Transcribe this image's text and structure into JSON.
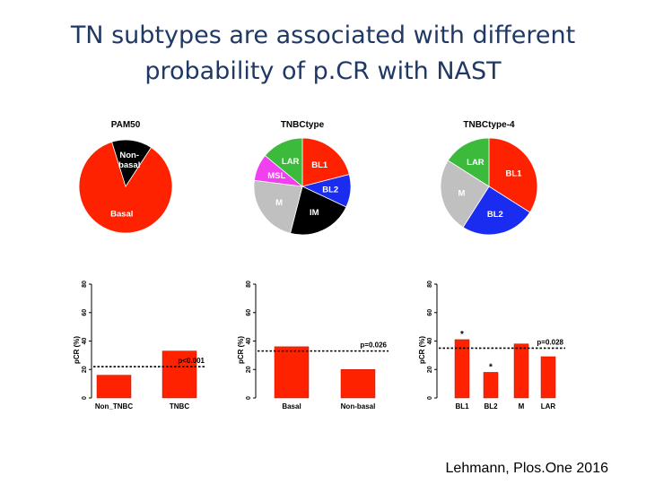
{
  "slide": {
    "title_line1": "TN subtypes are associated with different",
    "title_line2": "probability of p.CR with NAST",
    "citation": "Lehmann, Plos.One 2016"
  },
  "colors": {
    "title": "#1f3864",
    "red": "#ff2200",
    "black": "#000000",
    "blue": "#1a2cf0",
    "gray": "#c0c0c0",
    "green": "#3cba3c",
    "magenta": "#f040f0"
  },
  "chart_data": [
    {
      "type": "pie",
      "title": "PAM50",
      "slices": [
        {
          "label": "Basal",
          "value": 86,
          "color": "#ff2200",
          "label_color": "#ffffff"
        },
        {
          "label": "Non-\nbasal",
          "value": 14,
          "color": "#000000",
          "label_color": "#ffffff"
        }
      ]
    },
    {
      "type": "pie",
      "title": "TNBCtype",
      "slices": [
        {
          "label": "BL1",
          "value": 21,
          "color": "#ff2200",
          "label_color": "#ffffff"
        },
        {
          "label": "BL2",
          "value": 11,
          "color": "#1a2cf0",
          "label_color": "#ffffff"
        },
        {
          "label": "IM",
          "value": 22,
          "color": "#000000",
          "label_color": "#ffffff"
        },
        {
          "label": "M",
          "value": 23,
          "color": "#c0c0c0",
          "label_color": "#ffffff"
        },
        {
          "label": "MSL",
          "value": 9,
          "color": "#f040f0",
          "label_color": "#ffffff"
        },
        {
          "label": "LAR",
          "value": 14,
          "color": "#3cba3c",
          "label_color": "#ffffff"
        }
      ]
    },
    {
      "type": "pie",
      "title": "TNBCtype-4",
      "slices": [
        {
          "label": "BL1",
          "value": 34,
          "color": "#ff2200",
          "label_color": "#ffffff"
        },
        {
          "label": "BL2",
          "value": 25,
          "color": "#1a2cf0",
          "label_color": "#ffffff"
        },
        {
          "label": "M",
          "value": 25,
          "color": "#c0c0c0",
          "label_color": "#ffffff"
        },
        {
          "label": "LAR",
          "value": 16,
          "color": "#3cba3c",
          "label_color": "#ffffff"
        }
      ]
    },
    {
      "type": "bar",
      "categories": [
        "Non_TNBC",
        "TNBC"
      ],
      "values": [
        16,
        33
      ],
      "ylabel": "pCR (%)",
      "yticks": [
        0,
        20,
        40,
        60,
        80
      ],
      "ylim": [
        0,
        80
      ],
      "reference_line": 22,
      "annotation": "p<0.001",
      "stars": []
    },
    {
      "type": "bar",
      "categories": [
        "Basal",
        "Non-basal"
      ],
      "values": [
        36,
        20
      ],
      "ylabel": "pCR (%)",
      "yticks": [
        0,
        20,
        40,
        60,
        80
      ],
      "ylim": [
        0,
        80
      ],
      "reference_line": 33,
      "annotation": "p=0.026",
      "stars": []
    },
    {
      "type": "bar",
      "categories": [
        "BL1",
        "BL2",
        "M",
        "LAR"
      ],
      "values": [
        41,
        18,
        38,
        29
      ],
      "ylabel": "pCR (%)",
      "yticks": [
        0,
        20,
        40,
        60,
        80
      ],
      "ylim": [
        0,
        80
      ],
      "reference_line": 35,
      "annotation": "p=0.028",
      "stars": [
        {
          "category": "BL1",
          "label": "*"
        },
        {
          "category": "BL2",
          "label": "*"
        }
      ]
    }
  ]
}
